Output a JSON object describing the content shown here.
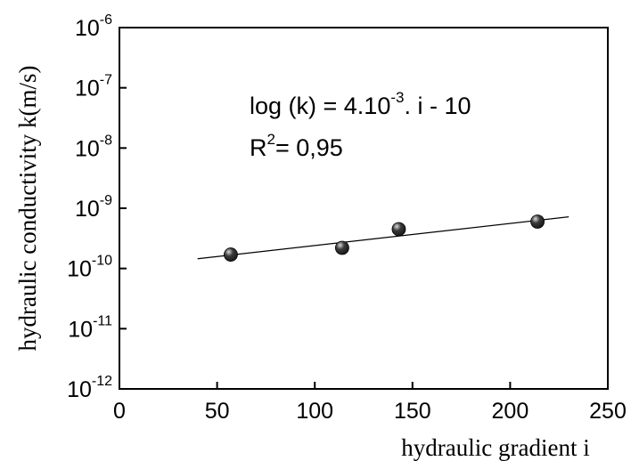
{
  "chart_data": {
    "type": "scatter",
    "xlabel": "hydraulic gradient i",
    "ylabel": "hydraulic conductivity  k(m/s)",
    "xlim": [
      0,
      250
    ],
    "ylim": [
      1e-12,
      1e-06
    ],
    "yscale": "log",
    "x_ticks": [
      "0",
      "50",
      "100",
      "150",
      "200",
      "250"
    ],
    "y_ticks": [
      {
        "base": "10",
        "exp": "-12",
        "value": 1e-12
      },
      {
        "base": "10",
        "exp": "-11",
        "value": 1e-11
      },
      {
        "base": "10",
        "exp": "-10",
        "value": 1e-10
      },
      {
        "base": "10",
        "exp": "-9",
        "value": 1e-09
      },
      {
        "base": "10",
        "exp": "-8",
        "value": 1e-08
      },
      {
        "base": "10",
        "exp": "-7",
        "value": 1e-07
      },
      {
        "base": "10",
        "exp": "-6",
        "value": 1e-06
      }
    ],
    "points": [
      {
        "x": 57,
        "y": 1.7e-10
      },
      {
        "x": 114,
        "y": 2.2e-10
      },
      {
        "x": 143,
        "y": 4.5e-10
      },
      {
        "x": 214,
        "y": 6e-10
      }
    ],
    "fit_line": {
      "x": [
        40,
        230
      ],
      "y": [
        1.45e-10,
        7.2e-10
      ]
    },
    "annotation": {
      "eq_prefix": "log (k) = 4.10",
      "eq_exp": "-3",
      "eq_suffix": ". i - 10",
      "r2_prefix": "R",
      "r2_exp": "2",
      "r2_suffix": "= 0,95"
    },
    "grid": false,
    "legend": "none",
    "colors": {
      "marker": "#1a1a1a",
      "line": "#000000",
      "axis": "#000000"
    }
  }
}
